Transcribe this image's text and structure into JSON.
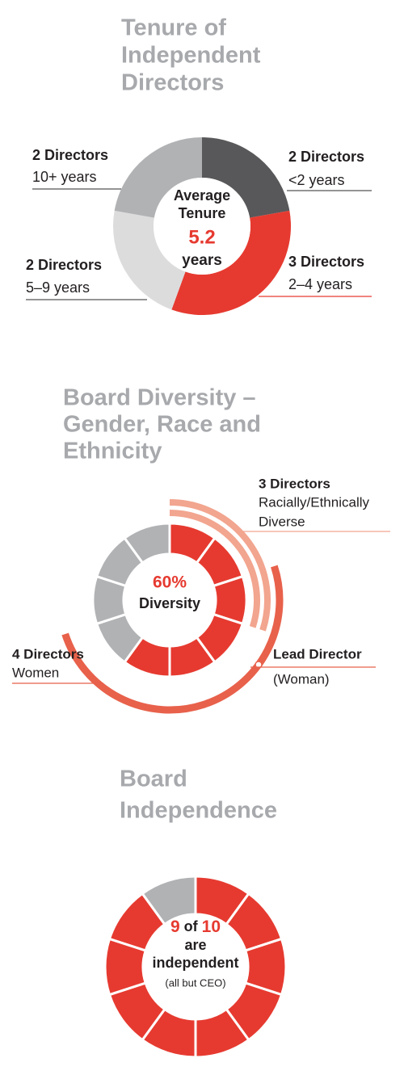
{
  "chart_data": [
    {
      "type": "donut",
      "title": [
        "Tenure of",
        "Independent",
        "Directors"
      ],
      "categories": [
        "<2 years",
        "2–4 years",
        "5–9 years",
        "10+ years"
      ],
      "values": [
        2,
        3,
        2,
        2
      ],
      "value_labels": [
        "2 Directors",
        "3 Directors",
        "2 Directors",
        "2 Directors"
      ],
      "colors": [
        "#58585a",
        "#e63a30",
        "#dcdcdd",
        "#b1b2b4"
      ],
      "center_label": [
        "Average",
        "Tenure"
      ],
      "center_value": 5.2,
      "center_unit": "years"
    },
    {
      "type": "unit-ring",
      "title": [
        "Board Diversity –",
        "Gender, Race and",
        "Ethnicity"
      ],
      "values": [
        6,
        4
      ],
      "colors": [
        "#e63a30",
        "#b1b2b4"
      ],
      "center_value": {
        "value": 60,
        "label": "60%"
      },
      "center_text": "Diversity",
      "arcs": [
        {
          "value": 3,
          "value_label": "3 Directors",
          "name": [
            "Racially/Ethnically",
            "Diverse"
          ],
          "color": "#f2a58f"
        },
        {
          "value": 4,
          "value_label": "4 Directors",
          "name": [
            "Women"
          ],
          "color": "#e8614b"
        }
      ],
      "annotation": {
        "title": "Lead Director",
        "text": "(Woman)"
      }
    },
    {
      "type": "unit-ring",
      "title": [
        "Board",
        "Independence"
      ],
      "values": [
        9,
        1
      ],
      "colors": [
        "#e63a30",
        "#b1b2b4"
      ],
      "total": 10,
      "connector": "of",
      "center_lines": [
        "are",
        "independent"
      ],
      "note": "(all but CEO)"
    }
  ]
}
